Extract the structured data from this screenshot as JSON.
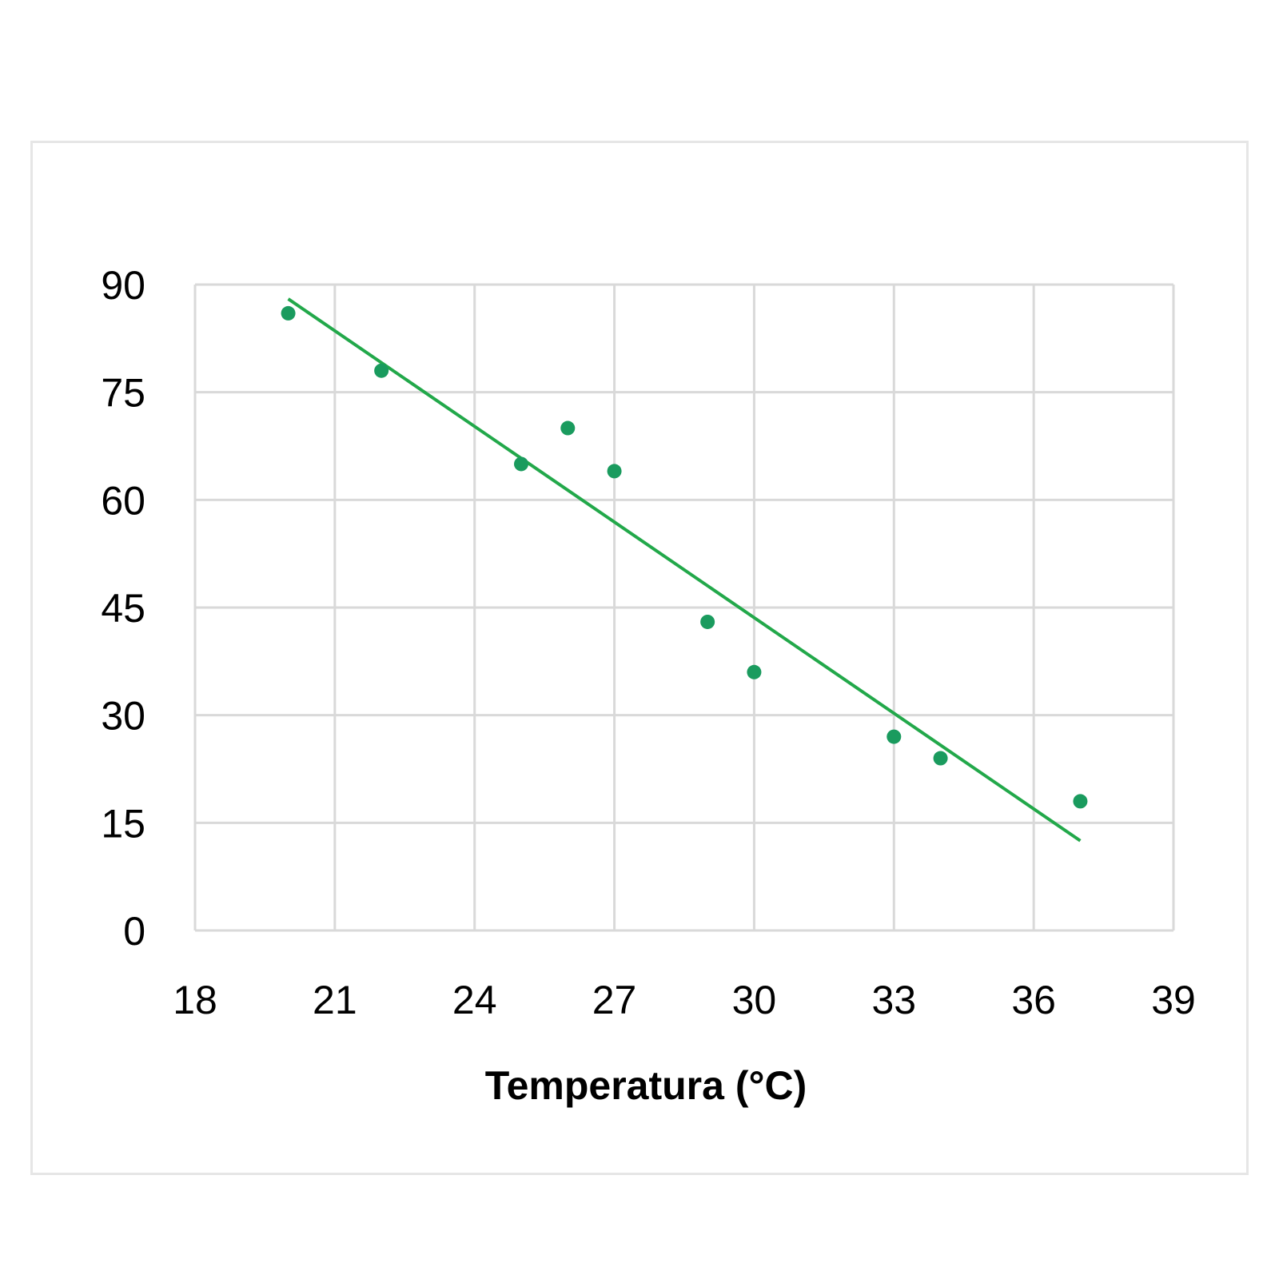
{
  "chart_data": {
    "type": "scatter",
    "title": "",
    "xlabel": "Temperatura (°C)",
    "ylabel": "",
    "xlim": [
      18,
      39
    ],
    "ylim": [
      0,
      90
    ],
    "x_ticks": [
      "18",
      "21",
      "24",
      "27",
      "30",
      "33",
      "36",
      "39"
    ],
    "y_ticks": [
      "0",
      "15",
      "30",
      "45",
      "60",
      "75",
      "90"
    ],
    "grid": true,
    "legend": "none",
    "series": [
      {
        "x": [
          20,
          22,
          25,
          26,
          27,
          29,
          30,
          33,
          34,
          37
        ],
        "y": [
          86,
          78,
          65,
          70,
          64,
          43,
          36,
          27,
          24,
          18
        ],
        "color": "#1a9b5e"
      }
    ],
    "trendline": {
      "type": "linear",
      "x_start": 20,
      "y_start": 88,
      "x_end": 37,
      "y_end": 12.5,
      "color": "#22a84a"
    },
    "colors": {
      "grid": "#d9d9d9",
      "frame": "#e6e6e6"
    }
  }
}
